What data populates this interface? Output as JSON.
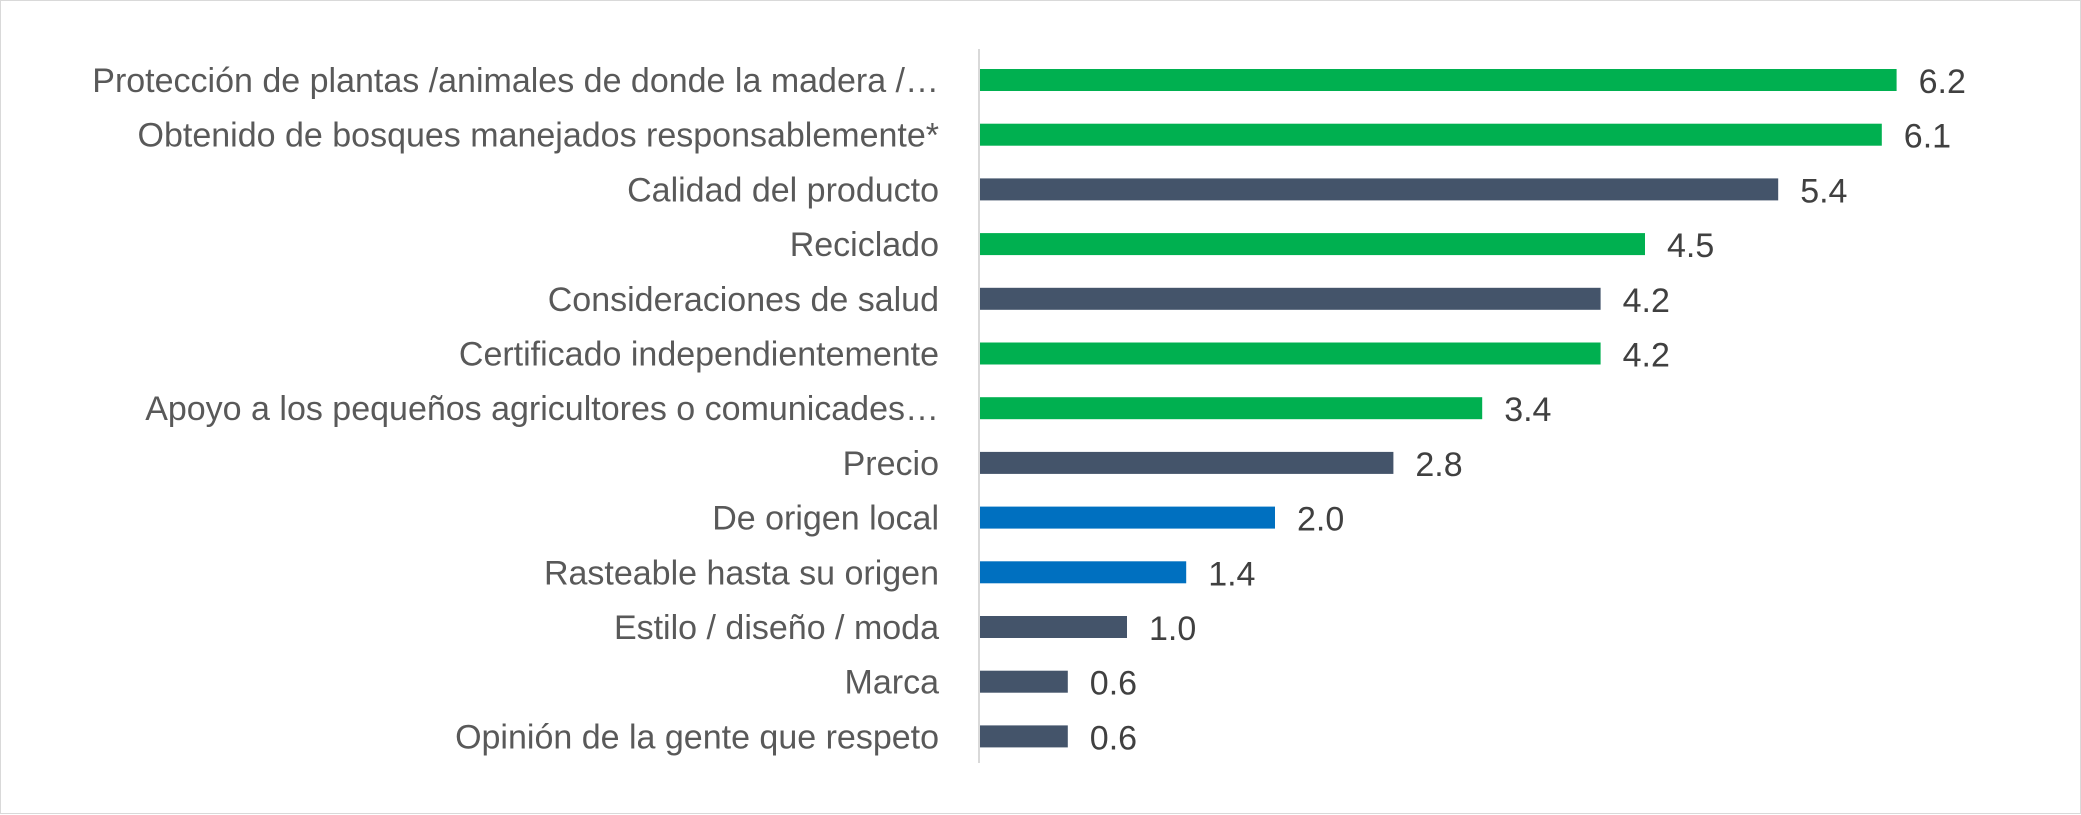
{
  "chart_data": {
    "type": "bar",
    "orientation": "horizontal",
    "title": "",
    "xlabel": "",
    "ylabel": "",
    "grid": false,
    "legend": "none",
    "xlim": [
      0,
      6.8
    ],
    "categories": [
      "Protección de plantas /animales de donde la madera /…",
      "Obtenido de bosques manejados responsablemente*",
      "Calidad del producto",
      "Reciclado",
      "Consideraciones de salud",
      "Certificado independientemente",
      "Apoyo a los pequeños agricultores o comunicades…",
      "Precio",
      "De origen local",
      "Rasteable hasta su origen",
      "Estilo / diseño / moda",
      "Marca",
      "Opinión de la gente que respeto"
    ],
    "values": [
      6.2,
      6.1,
      5.4,
      4.5,
      4.2,
      4.2,
      3.4,
      2.8,
      2.0,
      1.4,
      1.0,
      0.6,
      0.6
    ],
    "value_labels": [
      "6.2",
      "6.1",
      "5.4",
      "4.5",
      "4.2",
      "4.2",
      "3.4",
      "2.8",
      "2.0",
      "1.4",
      "1.0",
      "0.6",
      "0.6"
    ],
    "bar_colors": [
      "#00b050",
      "#00b050",
      "#44546a",
      "#00b050",
      "#44546a",
      "#00b050",
      "#00b050",
      "#44546a",
      "#0070c0",
      "#0070c0",
      "#44546a",
      "#44546a",
      "#44546a"
    ],
    "axis_color": "#d9d9d9"
  }
}
